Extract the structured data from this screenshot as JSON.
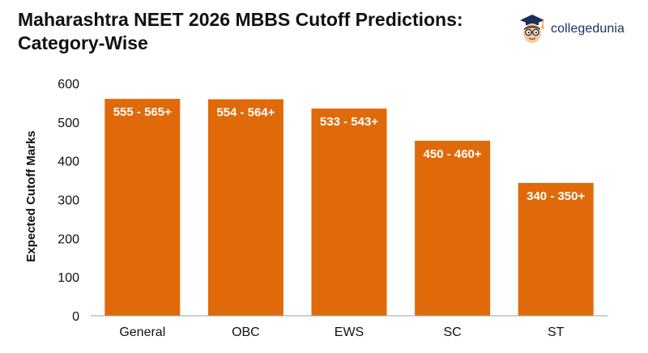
{
  "header": {
    "title_line1": "Maharashtra NEET 2026 MBBS Cutoff Predictions:",
    "title_line2": "Category-Wise"
  },
  "brand": {
    "name": "collegedunia",
    "icon": "graduate-mascot-icon"
  },
  "colors": {
    "bar": "#E06A0A",
    "axis": "#9aa0a6",
    "brand_text": "#1f2d5c"
  },
  "chart_data": {
    "type": "bar",
    "categories": [
      "General",
      "OBC",
      "EWS",
      "SC",
      "ST"
    ],
    "series": [
      {
        "values": [
          560,
          559,
          535,
          452,
          343
        ],
        "labels": [
          "555 - 565+",
          "554 - 564+",
          "533 - 543+",
          "450 - 460+",
          "340 - 350+"
        ]
      }
    ],
    "ylabel": "Expected Cutoff Marks",
    "xlabel": "",
    "ylim": [
      0,
      600
    ],
    "yticks": [
      0,
      100,
      200,
      300,
      400,
      500,
      600
    ],
    "grid": false,
    "legend": "none"
  }
}
